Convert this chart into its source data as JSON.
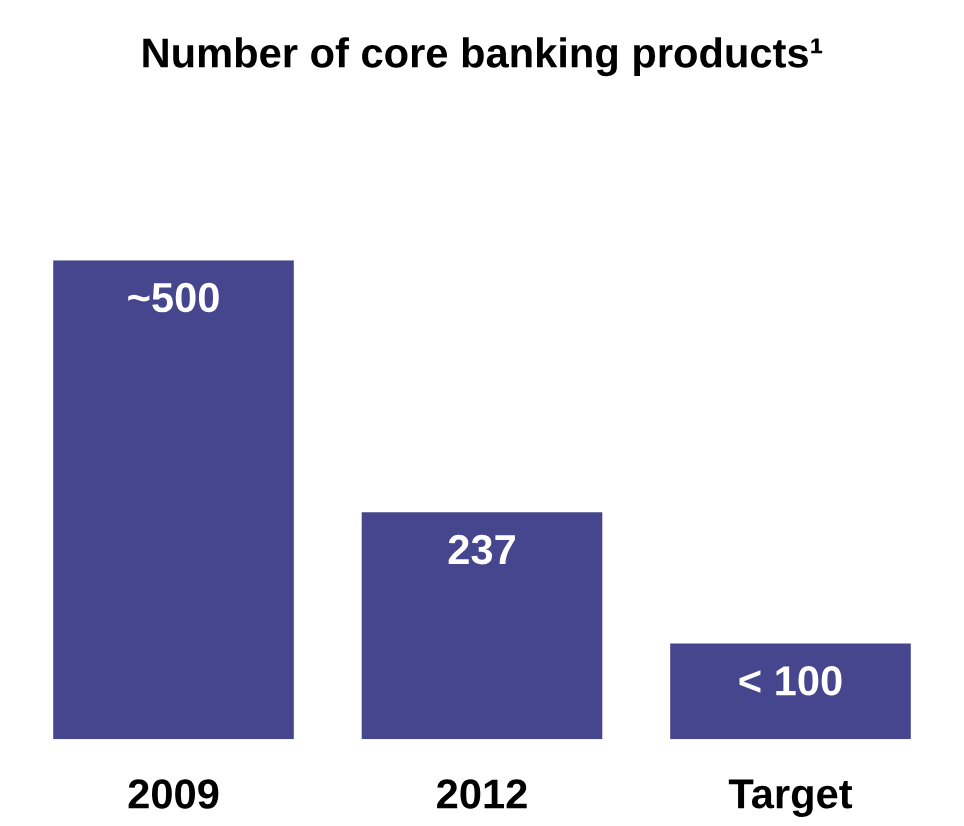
{
  "chart_data": {
    "type": "bar",
    "title": "Number of core banking products¹",
    "categories": [
      "2009",
      "2012",
      "Target"
    ],
    "values": [
      500,
      237,
      100
    ],
    "value_labels": [
      "~500",
      "237",
      "< 100"
    ],
    "color": "#46468e",
    "tick_labels": "x"
  }
}
